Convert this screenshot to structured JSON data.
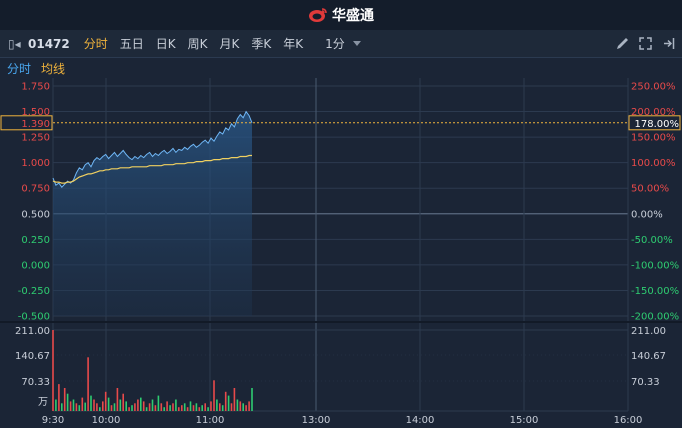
{
  "app": {
    "brand": "华盛通"
  },
  "toolbar": {
    "code": "01472",
    "tabs": [
      {
        "label": "分时",
        "active": true
      },
      {
        "label": "五日",
        "active": false
      },
      {
        "label": "日K",
        "active": false
      },
      {
        "label": "周K",
        "active": false
      },
      {
        "label": "月K",
        "active": false
      },
      {
        "label": "季K",
        "active": false
      },
      {
        "label": "年K",
        "active": false
      }
    ],
    "period": "1分"
  },
  "legend": {
    "minute": "分时",
    "avg": "均线"
  },
  "colors": {
    "up": "#e84a4a",
    "down": "#2ecc71",
    "price": "#6fb6f5",
    "avg": "#f0d060",
    "grid": "#2c3a4f",
    "accent": "#f0b33c"
  },
  "price_axis": {
    "labels": [
      "1.750",
      "1.500",
      "1.250",
      "1.000",
      "0.750",
      "0.500",
      "0.250",
      "0.000",
      "-0.250",
      "-0.500"
    ],
    "pct_labels": [
      "250.00%",
      "200.00%",
      "150.00%",
      "100.00%",
      "50.00%",
      "0.00%",
      "-50.00%",
      "-100.00%",
      "-150.00%",
      "-200.00%"
    ]
  },
  "cursor": {
    "price": "1.390",
    "pct": "178.00%"
  },
  "volume_axis": {
    "labels": [
      "211.00",
      "140.67",
      "70.33"
    ],
    "unit": "万"
  },
  "time_axis": {
    "labels": [
      "9:30",
      "10:00",
      "11:00",
      "13:00",
      "14:00",
      "15:00",
      "16:00"
    ]
  },
  "chart_data": {
    "type": "line",
    "prev_close": 0.5,
    "ylim": [
      -0.5,
      1.75
    ],
    "price": [
      0.85,
      0.78,
      0.8,
      0.76,
      0.79,
      0.82,
      0.8,
      0.83,
      0.9,
      0.95,
      0.93,
      0.98,
      1.0,
      0.96,
      1.02,
      1.05,
      1.03,
      1.06,
      1.08,
      1.04,
      1.07,
      1.1,
      1.06,
      1.09,
      1.12,
      1.08,
      1.05,
      1.03,
      1.06,
      1.04,
      1.07,
      1.05,
      1.08,
      1.1,
      1.06,
      1.09,
      1.07,
      1.1,
      1.12,
      1.09,
      1.11,
      1.14,
      1.1,
      1.13,
      1.12,
      1.15,
      1.13,
      1.16,
      1.18,
      1.15,
      1.17,
      1.2,
      1.22,
      1.19,
      1.24,
      1.21,
      1.26,
      1.3,
      1.28,
      1.34,
      1.32,
      1.38,
      1.35,
      1.43,
      1.47,
      1.44,
      1.5,
      1.46,
      1.39
    ],
    "avg": [
      0.82,
      0.81,
      0.81,
      0.8,
      0.8,
      0.81,
      0.81,
      0.82,
      0.84,
      0.86,
      0.87,
      0.88,
      0.89,
      0.89,
      0.9,
      0.91,
      0.92,
      0.92,
      0.93,
      0.93,
      0.94,
      0.94,
      0.94,
      0.95,
      0.95,
      0.95,
      0.95,
      0.96,
      0.96,
      0.96,
      0.96,
      0.96,
      0.96,
      0.97,
      0.97,
      0.97,
      0.97,
      0.97,
      0.98,
      0.98,
      0.98,
      0.98,
      0.99,
      0.99,
      0.99,
      0.99,
      1.0,
      1.0,
      1.0,
      1.01,
      1.01,
      1.01,
      1.02,
      1.02,
      1.02,
      1.03,
      1.03,
      1.03,
      1.04,
      1.04,
      1.04,
      1.05,
      1.05,
      1.05,
      1.06,
      1.06,
      1.06,
      1.07,
      1.07
    ],
    "volume": [
      211,
      30,
      70,
      20,
      60,
      45,
      25,
      30,
      20,
      15,
      35,
      22,
      140,
      40,
      30,
      20,
      10,
      25,
      50,
      35,
      15,
      20,
      60,
      30,
      45,
      25,
      10,
      15,
      20,
      30,
      35,
      25,
      10,
      20,
      30,
      15,
      40,
      20,
      10,
      25,
      15,
      20,
      30,
      10,
      15,
      20,
      10,
      25,
      15,
      20,
      10,
      15,
      20,
      10,
      25,
      80,
      30,
      20,
      15,
      50,
      40,
      20,
      60,
      30,
      25,
      20,
      15,
      25,
      60
    ],
    "vol_up": [
      true,
      false,
      true,
      false,
      true,
      false,
      true,
      false,
      true,
      false,
      true,
      false,
      true,
      false,
      true,
      true,
      false,
      true,
      true,
      false,
      true,
      false,
      true,
      false,
      true,
      false,
      true,
      false,
      true,
      true,
      false,
      true,
      false,
      true,
      false,
      true,
      false,
      true,
      false,
      true,
      false,
      true,
      false,
      true,
      true,
      false,
      true,
      false,
      true,
      false,
      true,
      false,
      true,
      false,
      true,
      true,
      false,
      true,
      false,
      true,
      false,
      true,
      true,
      false,
      true,
      false,
      true,
      true,
      false
    ],
    "vol_ylim": [
      0,
      211
    ]
  }
}
